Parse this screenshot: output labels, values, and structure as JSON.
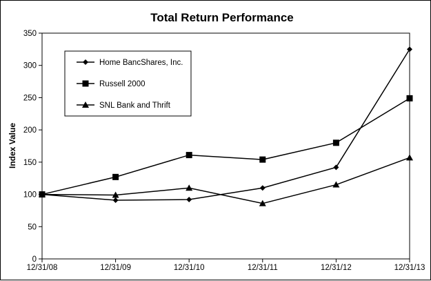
{
  "chart_data": {
    "type": "line",
    "title": "Total Return Performance",
    "xlabel": "",
    "ylabel": "Index Value",
    "categories": [
      "12/31/08",
      "12/31/09",
      "12/31/10",
      "12/31/11",
      "12/31/12",
      "12/31/13"
    ],
    "yticks": [
      "0",
      "50",
      "100",
      "150",
      "200",
      "250",
      "300",
      "350"
    ],
    "ylim": [
      0,
      350
    ],
    "grid": false,
    "legend_position": "top-left",
    "series": [
      {
        "name": "Home BancShares, Inc.",
        "marker": "diamond",
        "values": [
          100,
          91,
          92,
          110,
          142,
          325
        ]
      },
      {
        "name": "Russell 2000",
        "marker": "square",
        "values": [
          100,
          127,
          161,
          154,
          180,
          249
        ]
      },
      {
        "name": "SNL Bank and Thrift",
        "marker": "triangle",
        "values": [
          100,
          99,
          110,
          86,
          115,
          157
        ]
      }
    ],
    "colors": {
      "line": "#000000",
      "background": "#ffffff"
    }
  }
}
